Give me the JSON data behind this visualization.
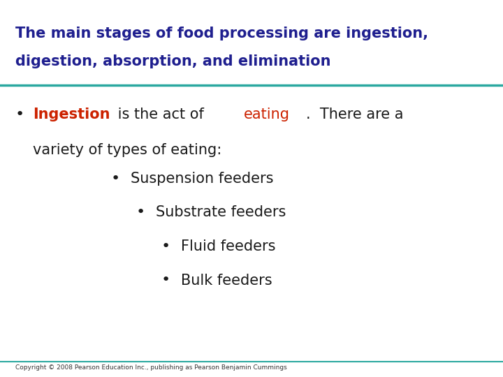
{
  "title_line1": "The main stages of food processing are ingestion,",
  "title_line2": "digestion, absorption, and elimination",
  "title_color": "#1f1f8f",
  "bg_color": "#ffffff",
  "line_color": "#2ba8a0",
  "bullet1_line2": "variety of types of eating:",
  "sub_bullets": [
    "Suspension feeders",
    "Substrate feeders",
    "Fluid feeders",
    "Bulk feeders"
  ],
  "sub_bullet_color": "#1a1a1a",
  "copyright": "Copyright © 2008 Pearson Education Inc., publishing as Pearson Benjamin Cummings"
}
